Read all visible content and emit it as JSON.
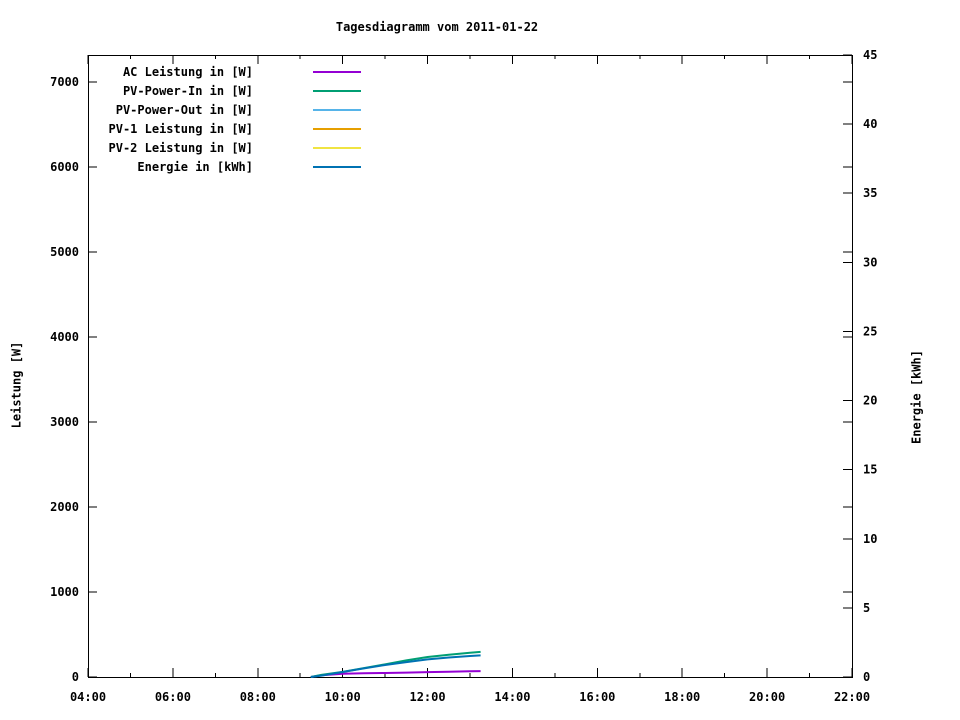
{
  "title": "Tagesdiagramm vom 2011-01-22",
  "chart_data": {
    "type": "line",
    "title": "Tagesdiagramm vom 2011-01-22",
    "background": "#ffffff",
    "text_color": "#000000",
    "border_color": "#000000",
    "grid": false,
    "legend_position": "top-left-inside",
    "x_axis": {
      "label": "",
      "tick_hours": [
        4,
        6,
        8,
        10,
        12,
        14,
        16,
        18,
        20,
        22
      ],
      "tick_labels": [
        "04:00",
        "06:00",
        "08:00",
        "10:00",
        "12:00",
        "14:00",
        "16:00",
        "18:00",
        "20:00",
        "22:00"
      ],
      "minor_tick_hours": [
        5,
        7,
        9,
        11,
        13,
        15,
        17,
        19,
        21
      ],
      "range_hours": [
        4,
        22
      ]
    },
    "y_left": {
      "label": "Leistung [W]",
      "ticks": [
        0,
        1000,
        2000,
        3000,
        4000,
        5000,
        6000,
        7000
      ],
      "range": [
        0,
        7318
      ]
    },
    "y_right": {
      "label": "Energie [kWh]",
      "ticks": [
        0,
        5,
        10,
        15,
        20,
        25,
        30,
        35,
        40,
        45
      ],
      "range": [
        0,
        45
      ]
    },
    "series": [
      {
        "name": "AC Leistung in [W]",
        "color": "#9400D3",
        "axis": "left",
        "points": [
          [
            9.25,
            0
          ],
          [
            9.5,
            20
          ],
          [
            10,
            38
          ],
          [
            10.5,
            44
          ],
          [
            11,
            47
          ],
          [
            11.5,
            52
          ],
          [
            12,
            58
          ],
          [
            12.5,
            62
          ],
          [
            13,
            67
          ],
          [
            13.25,
            70
          ]
        ]
      },
      {
        "name": "PV-Power-In in [W]",
        "color": "#009E73",
        "axis": "left",
        "points": [
          [
            9.25,
            0
          ],
          [
            9.5,
            25
          ],
          [
            10,
            60
          ],
          [
            10.5,
            105
          ],
          [
            11,
            150
          ],
          [
            11.5,
            195
          ],
          [
            12,
            235
          ],
          [
            12.5,
            262
          ],
          [
            13,
            285
          ],
          [
            13.25,
            295
          ]
        ]
      },
      {
        "name": "PV-Power-Out in [W]",
        "color": "#56B4E9",
        "axis": "left",
        "points": []
      },
      {
        "name": "PV-1 Leistung in [W]",
        "color": "#E69F00",
        "axis": "left",
        "points": []
      },
      {
        "name": "PV-2 Leistung in [W]",
        "color": "#F0E442",
        "axis": "left",
        "points": []
      },
      {
        "name": "Energie in [kWh]",
        "color": "#0072B2",
        "axis": "right",
        "points": [
          [
            9.25,
            0
          ],
          [
            9.5,
            0.1
          ],
          [
            10,
            0.36
          ],
          [
            10.5,
            0.62
          ],
          [
            11,
            0.87
          ],
          [
            11.5,
            1.08
          ],
          [
            12,
            1.27
          ],
          [
            12.5,
            1.41
          ],
          [
            13,
            1.52
          ],
          [
            13.25,
            1.56
          ]
        ]
      }
    ]
  }
}
